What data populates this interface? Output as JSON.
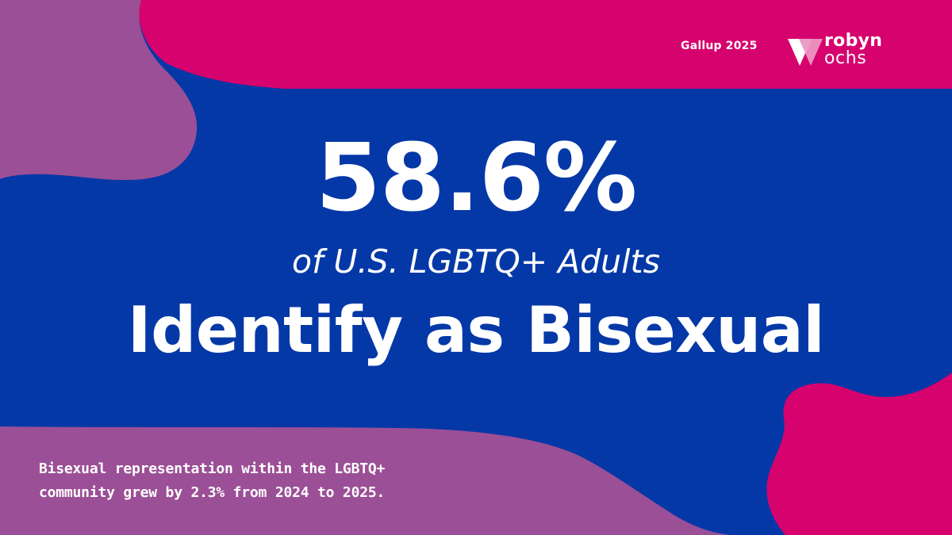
{
  "source": {
    "label": "Gallup 2025"
  },
  "logo": {
    "word_1": "robyn",
    "word_2": "ochs",
    "icon": "inverted-triangle-logo-mark"
  },
  "headline": {
    "number": "58.6%",
    "subline": "of U.S. LGBTQ+ Adults",
    "main": "Identify as Bisexual"
  },
  "footnote": {
    "line_1": "Bisexual representation within the LGBTQ+",
    "line_2": "community grew by 2.3% from 2024 to 2025."
  },
  "colors": {
    "background_blue": "#0538a7",
    "magenta": "#d6026e",
    "purple": "#9b4f96",
    "text": "#ffffff"
  }
}
